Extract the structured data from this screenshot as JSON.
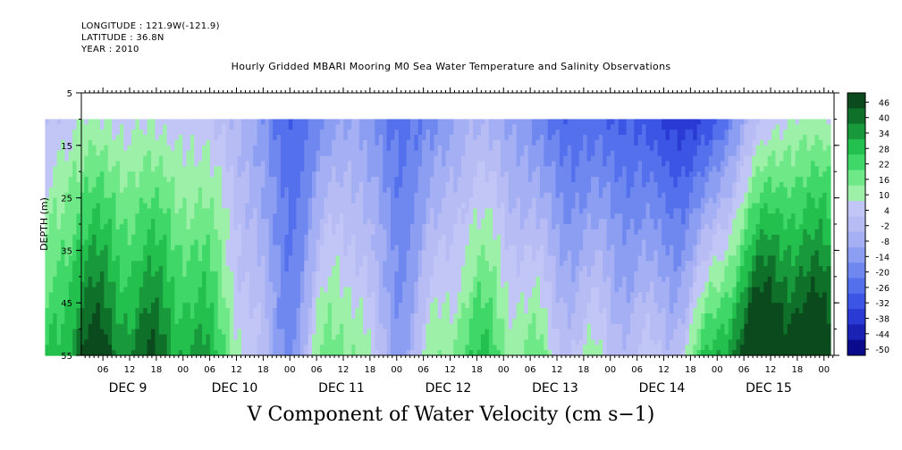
{
  "header": {
    "longitude": "LONGITUDE : 121.9W(-121.9)",
    "latitude": "LATITUDE : 36.8N",
    "year": "YEAR : 2010",
    "title": "Hourly Gridded MBARI Mooring M0 Sea Water Temperature and Salinity Observations"
  },
  "chart_data": {
    "type": "heatmap",
    "title": "Hourly Gridded MBARI Mooring M0 Sea Water Temperature and Salinity Observations",
    "xlabel": "",
    "ylabel": "DEPTH (m)",
    "bottom_title": "V Component of Water Velocity (cm s−1)",
    "y_ticks": [
      5,
      15,
      25,
      35,
      45,
      55
    ],
    "y_range": [
      5,
      55
    ],
    "data_depth_range": [
      10,
      55
    ],
    "x_hour_ticks": [
      "06",
      "12",
      "18",
      "00",
      "06",
      "12",
      "18",
      "00",
      "06",
      "12",
      "18",
      "00",
      "06",
      "12",
      "18",
      "00",
      "06",
      "12",
      "18",
      "00",
      "06",
      "12",
      "18",
      "00",
      "06",
      "12",
      "18",
      "00",
      "06",
      "12",
      "18",
      "00"
    ],
    "x_day_labels": [
      "DEC  9",
      "DEC 10",
      "DEC 11",
      "DEC 12",
      "DEC 13",
      "DEC 14",
      "DEC 15"
    ],
    "x_range_days": [
      8.0,
      15.0
    ],
    "colorbar_levels": [
      "46",
      "40",
      "34",
      "28",
      "22",
      "16",
      "10",
      "4",
      "-2",
      "-8",
      "-14",
      "-20",
      "-26",
      "-32",
      "-38",
      "-44",
      "-50"
    ],
    "colorbar_colors": {
      "strong_positive": "#0a4a1c",
      "weak_positive": "#9cf0a8",
      "weak_negative": "#b4b8f4",
      "strong_negative": "#0a0a8c"
    },
    "pattern_description": "Mostly negative (blue) velocities with alternating tidal bands; positive (green) patches near bottom on Dec 9, Dec 13 and Dec 15"
  }
}
